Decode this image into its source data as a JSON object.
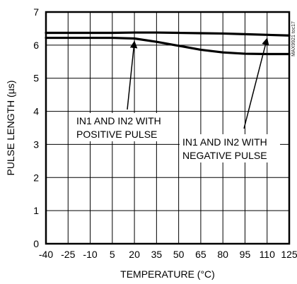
{
  "chart_data": {
    "type": "line",
    "title": "",
    "xlabel": "TEMPERATURE (°C)",
    "ylabel": "PULSE LENGTH (µs)",
    "x": [
      -40,
      -25,
      -10,
      5,
      20,
      35,
      50,
      65,
      80,
      95,
      110,
      125
    ],
    "xlim": [
      -40,
      125
    ],
    "ylim": [
      0,
      7
    ],
    "x_ticks": [
      "-40",
      "-25",
      "-10",
      "5",
      "20",
      "35",
      "50",
      "65",
      "80",
      "95",
      "110",
      "125"
    ],
    "y_ticks": [
      "0",
      "1",
      "2",
      "3",
      "4",
      "5",
      "6",
      "7"
    ],
    "grid": true,
    "series": [
      {
        "values": [
          6.37,
          6.37,
          6.37,
          6.37,
          6.38,
          6.38,
          6.37,
          6.36,
          6.35,
          6.33,
          6.31,
          6.29
        ]
      },
      {
        "values": [
          6.22,
          6.22,
          6.22,
          6.22,
          6.2,
          6.1,
          5.98,
          5.86,
          5.78,
          5.74,
          5.73,
          5.73
        ]
      }
    ],
    "annotations": [
      {
        "lines": [
          "IN1 AND IN2 WITH",
          "POSITIVE PULSE"
        ],
        "arrow_to": {
          "x": 20,
          "y": 6.22
        }
      },
      {
        "lines": [
          "IN1 AND IN2 WITH",
          "NEGATIVE PULSE"
        ],
        "arrow_to": {
          "x": 110,
          "y": 6.31
        }
      }
    ],
    "figure_code": "MAX9921 toc17"
  }
}
